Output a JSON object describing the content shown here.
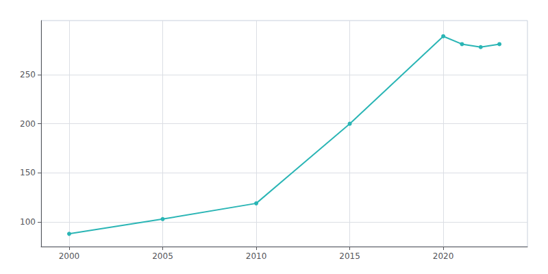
{
  "chart_data": {
    "type": "line",
    "x": [
      2000,
      2005,
      2010,
      2015,
      2020,
      2021,
      2022,
      2023
    ],
    "values": [
      88,
      103,
      119,
      200,
      289,
      281,
      278,
      281
    ],
    "color": "#2ab5b5",
    "marker": "circle",
    "xlim": [
      1998.5,
      2024.5
    ],
    "xticks": [
      2000,
      2005,
      2010,
      2015,
      2020
    ],
    "ylim": [
      75,
      305
    ],
    "yticks": [
      100,
      150,
      200,
      250
    ],
    "grid": true
  }
}
